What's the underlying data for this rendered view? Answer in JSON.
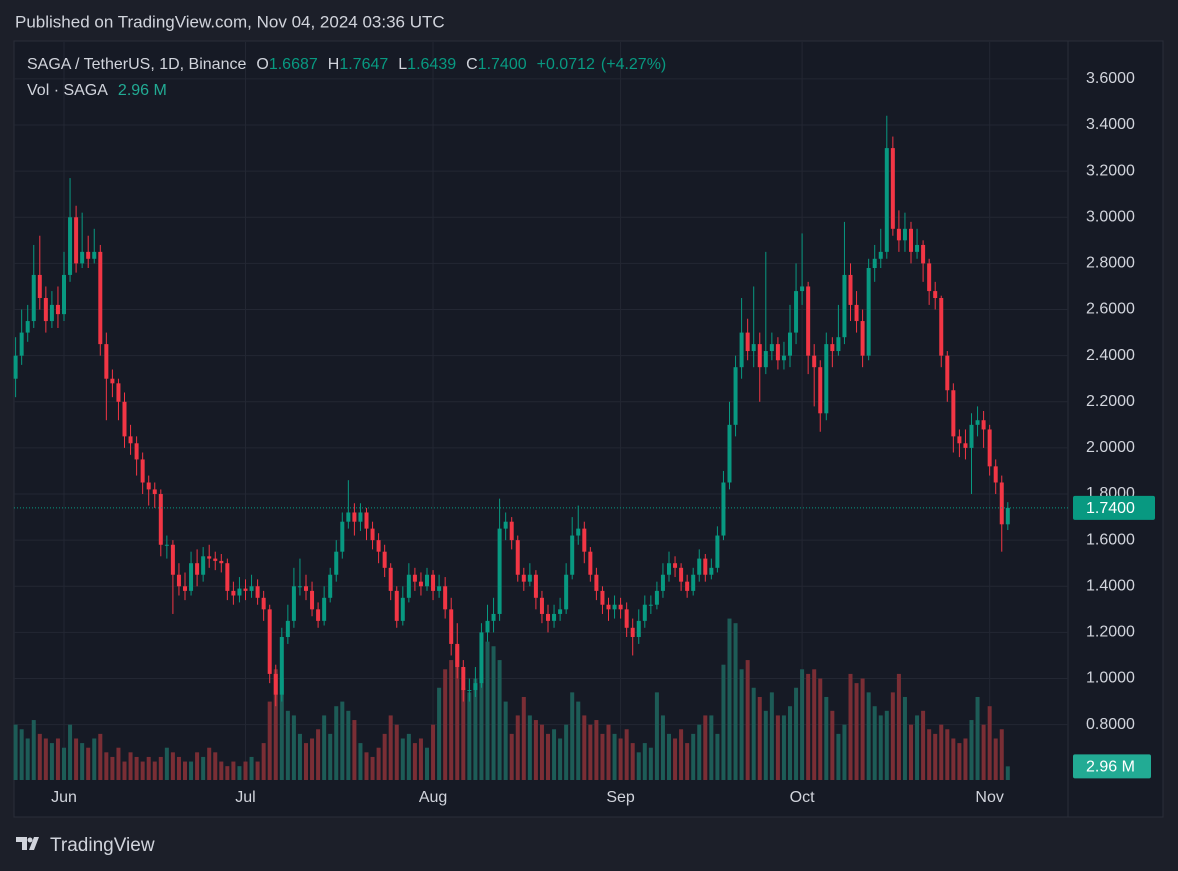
{
  "chart_data": {
    "type": "candlestick",
    "published": "Published on TradingView.com, Nov 04, 2024 03:36 UTC",
    "symbol": "SAGA / TetherUS, 1D, Binance",
    "ohlc": [
      {
        "key": "O",
        "value": "1.6687"
      },
      {
        "key": "H",
        "value": "1.7647"
      },
      {
        "key": "L",
        "value": "1.6439"
      },
      {
        "key": "C",
        "value": "1.7400"
      }
    ],
    "change": "+0.0712",
    "change_percent": "(+4.27%)",
    "volume_title": "Vol · SAGA",
    "volume_label": "2.96 M",
    "footer": "TradingView",
    "categories": [
      null,
      null,
      null,
      null,
      null,
      null,
      null,
      null,
      "Jun",
      null,
      null,
      null,
      null,
      null,
      null,
      null,
      null,
      null,
      null,
      null,
      null,
      null,
      null,
      null,
      null,
      null,
      null,
      null,
      null,
      null,
      null,
      null,
      null,
      null,
      null,
      null,
      null,
      null,
      "Jul",
      null,
      null,
      null,
      null,
      null,
      null,
      null,
      null,
      null,
      null,
      null,
      null,
      null,
      null,
      null,
      null,
      null,
      null,
      null,
      null,
      null,
      null,
      null,
      null,
      null,
      null,
      null,
      null,
      null,
      null,
      "Aug",
      null,
      null,
      null,
      null,
      null,
      null,
      null,
      null,
      null,
      null,
      null,
      null,
      null,
      null,
      null,
      null,
      null,
      null,
      null,
      null,
      null,
      null,
      null,
      null,
      null,
      null,
      null,
      null,
      null,
      null,
      "Sep",
      null,
      null,
      null,
      null,
      null,
      null,
      null,
      null,
      null,
      null,
      null,
      null,
      null,
      null,
      null,
      null,
      null,
      null,
      null,
      null,
      null,
      null,
      null,
      null,
      null,
      null,
      null,
      null,
      null,
      "Oct",
      null,
      null,
      null,
      null,
      null,
      null,
      null,
      null,
      null,
      null,
      null,
      null,
      null,
      null,
      null,
      null,
      null,
      null,
      null,
      null,
      null,
      null,
      null,
      null,
      null,
      null,
      null,
      null,
      null,
      null,
      "Nov",
      null,
      null,
      null
    ],
    "open": [
      2.3,
      2.4,
      2.5,
      2.55,
      2.75,
      2.65,
      2.55,
      2.62,
      2.58,
      2.75,
      3.0,
      2.8,
      2.85,
      2.82,
      2.85,
      2.45,
      2.3,
      2.28,
      2.2,
      2.05,
      2.02,
      1.95,
      1.85,
      1.82,
      1.8,
      1.58,
      1.58,
      1.45,
      1.4,
      1.38,
      1.5,
      1.45,
      1.53,
      1.52,
      1.51,
      1.5,
      1.38,
      1.36,
      1.39,
      1.38,
      1.4,
      1.35,
      1.3,
      1.02,
      0.93,
      1.18,
      1.25,
      1.4,
      1.4,
      1.38,
      1.3,
      1.25,
      1.35,
      1.45,
      1.55,
      1.68,
      1.72,
      1.68,
      1.72,
      1.65,
      1.6,
      1.55,
      1.48,
      1.38,
      1.25,
      1.35,
      1.45,
      1.42,
      1.4,
      1.45,
      1.38,
      1.4,
      1.3,
      1.15,
      1.05,
      0.95,
      0.95,
      0.98,
      1.2,
      1.25,
      1.28,
      1.65,
      1.68,
      1.6,
      1.45,
      1.42,
      1.45,
      1.35,
      1.28,
      1.25,
      1.28,
      1.3,
      1.45,
      1.62,
      1.65,
      1.55,
      1.45,
      1.38,
      1.32,
      1.3,
      1.32,
      1.3,
      1.22,
      1.18,
      1.25,
      1.32,
      1.32,
      1.38,
      1.45,
      1.5,
      1.48,
      1.42,
      1.38,
      1.45,
      1.52,
      1.45,
      1.48,
      1.62,
      1.85,
      2.1,
      2.35,
      2.5,
      2.42,
      2.45,
      2.35,
      2.42,
      2.45,
      2.38,
      2.4,
      2.5,
      2.68,
      2.7,
      2.4,
      2.35,
      2.15,
      2.45,
      2.42,
      2.48,
      2.75,
      2.62,
      2.55,
      2.4,
      2.78,
      2.82,
      2.85,
      3.3,
      2.95,
      2.9,
      2.95,
      2.85,
      2.88,
      2.8,
      2.68,
      2.65,
      2.4,
      2.25,
      2.05,
      2.02,
      2.0,
      2.1,
      2.12,
      2.08,
      1.92,
      1.85,
      1.6687
    ],
    "high": [
      2.48,
      2.6,
      2.62,
      2.88,
      2.92,
      2.7,
      2.68,
      2.7,
      2.85,
      3.17,
      3.05,
      3.02,
      2.92,
      2.95,
      2.88,
      2.5,
      2.34,
      2.3,
      2.24,
      2.1,
      2.05,
      1.98,
      1.88,
      1.85,
      1.82,
      1.62,
      1.6,
      1.5,
      1.46,
      1.55,
      1.56,
      1.57,
      1.58,
      1.55,
      1.54,
      1.52,
      1.42,
      1.44,
      1.43,
      1.45,
      1.43,
      1.38,
      1.32,
      1.06,
      1.22,
      1.32,
      1.48,
      1.52,
      1.45,
      1.42,
      1.33,
      1.4,
      1.48,
      1.6,
      1.72,
      1.86,
      1.76,
      1.76,
      1.74,
      1.68,
      1.63,
      1.58,
      1.5,
      1.4,
      1.4,
      1.5,
      1.48,
      1.46,
      1.48,
      1.47,
      1.45,
      1.44,
      1.35,
      1.24,
      1.08,
      1.0,
      1.05,
      1.24,
      1.32,
      1.35,
      1.78,
      1.72,
      1.7,
      1.62,
      1.48,
      1.5,
      1.47,
      1.38,
      1.32,
      1.32,
      1.35,
      1.5,
      1.7,
      1.75,
      1.68,
      1.57,
      1.48,
      1.4,
      1.35,
      1.36,
      1.35,
      1.33,
      1.26,
      1.3,
      1.36,
      1.36,
      1.42,
      1.5,
      1.55,
      1.53,
      1.5,
      1.45,
      1.48,
      1.56,
      1.54,
      1.52,
      1.66,
      1.9,
      2.2,
      2.4,
      2.65,
      2.56,
      2.7,
      2.5,
      2.85,
      2.5,
      2.48,
      2.46,
      2.62,
      2.8,
      2.93,
      2.72,
      2.45,
      2.38,
      2.5,
      2.48,
      2.62,
      2.98,
      2.8,
      2.68,
      2.6,
      2.82,
      2.88,
      2.95,
      3.44,
      3.35,
      3.03,
      3.02,
      2.98,
      2.95,
      2.9,
      2.82,
      2.72,
      2.66,
      2.42,
      2.28,
      2.08,
      2.08,
      2.15,
      2.18,
      2.16,
      2.1,
      1.95,
      1.88,
      1.7647
    ],
    "low": [
      2.22,
      2.36,
      2.46,
      2.52,
      2.6,
      2.5,
      2.52,
      2.52,
      2.55,
      2.72,
      2.76,
      2.78,
      2.78,
      2.8,
      2.4,
      2.12,
      2.22,
      2.12,
      2.0,
      1.97,
      1.88,
      1.8,
      1.75,
      1.74,
      1.53,
      1.52,
      1.28,
      1.36,
      1.34,
      1.36,
      1.4,
      1.42,
      1.48,
      1.47,
      1.46,
      1.34,
      1.32,
      1.33,
      1.34,
      1.35,
      1.32,
      1.25,
      0.98,
      0.88,
      0.9,
      1.15,
      1.22,
      1.36,
      1.34,
      1.27,
      1.22,
      1.23,
      1.33,
      1.42,
      1.52,
      1.65,
      1.62,
      1.64,
      1.6,
      1.56,
      1.5,
      1.44,
      1.34,
      1.22,
      1.23,
      1.33,
      1.38,
      1.36,
      1.38,
      1.34,
      1.35,
      1.26,
      1.1,
      1.0,
      0.9,
      0.9,
      0.92,
      0.96,
      1.16,
      1.2,
      1.25,
      1.6,
      1.56,
      1.42,
      1.38,
      1.4,
      1.3,
      1.24,
      1.2,
      1.22,
      1.25,
      1.28,
      1.43,
      1.58,
      1.5,
      1.42,
      1.34,
      1.28,
      1.25,
      1.26,
      1.26,
      1.18,
      1.1,
      1.15,
      1.22,
      1.28,
      1.3,
      1.35,
      1.42,
      1.44,
      1.38,
      1.35,
      1.36,
      1.42,
      1.42,
      1.43,
      1.46,
      1.6,
      1.82,
      2.05,
      2.3,
      2.38,
      2.35,
      2.2,
      2.32,
      2.38,
      2.34,
      2.34,
      2.35,
      2.45,
      2.62,
      2.32,
      2.18,
      2.07,
      2.12,
      2.35,
      2.4,
      2.45,
      2.55,
      2.5,
      2.35,
      2.38,
      2.72,
      2.78,
      2.82,
      2.92,
      2.85,
      2.85,
      2.8,
      2.82,
      2.72,
      2.62,
      2.6,
      2.35,
      2.2,
      1.98,
      1.96,
      1.95,
      1.8,
      2.05,
      2.0,
      1.88,
      1.8,
      1.55,
      1.6439
    ],
    "close": [
      2.4,
      2.5,
      2.55,
      2.75,
      2.65,
      2.55,
      2.62,
      2.58,
      2.75,
      3.0,
      2.8,
      2.85,
      2.82,
      2.85,
      2.45,
      2.3,
      2.28,
      2.2,
      2.05,
      2.02,
      1.95,
      1.85,
      1.82,
      1.8,
      1.58,
      1.58,
      1.45,
      1.4,
      1.38,
      1.5,
      1.45,
      1.53,
      1.52,
      1.51,
      1.5,
      1.38,
      1.36,
      1.39,
      1.38,
      1.4,
      1.35,
      1.3,
      1.02,
      0.93,
      1.18,
      1.25,
      1.4,
      1.4,
      1.38,
      1.3,
      1.25,
      1.35,
      1.45,
      1.55,
      1.68,
      1.72,
      1.68,
      1.72,
      1.65,
      1.6,
      1.55,
      1.48,
      1.38,
      1.25,
      1.35,
      1.45,
      1.42,
      1.4,
      1.45,
      1.38,
      1.4,
      1.3,
      1.15,
      1.05,
      0.95,
      0.95,
      0.98,
      1.2,
      1.25,
      1.28,
      1.65,
      1.68,
      1.6,
      1.45,
      1.42,
      1.45,
      1.35,
      1.28,
      1.25,
      1.28,
      1.3,
      1.45,
      1.62,
      1.65,
      1.55,
      1.45,
      1.38,
      1.32,
      1.3,
      1.32,
      1.3,
      1.22,
      1.18,
      1.25,
      1.32,
      1.32,
      1.38,
      1.45,
      1.5,
      1.48,
      1.42,
      1.38,
      1.45,
      1.52,
      1.45,
      1.48,
      1.62,
      1.85,
      2.1,
      2.35,
      2.5,
      2.42,
      2.45,
      2.35,
      2.42,
      2.45,
      2.38,
      2.4,
      2.5,
      2.68,
      2.7,
      2.4,
      2.35,
      2.15,
      2.45,
      2.42,
      2.48,
      2.75,
      2.62,
      2.55,
      2.4,
      2.78,
      2.82,
      2.85,
      3.3,
      2.95,
      2.9,
      2.95,
      2.85,
      2.88,
      2.8,
      2.68,
      2.65,
      2.4,
      2.25,
      2.05,
      2.02,
      2.0,
      2.1,
      2.12,
      2.08,
      1.92,
      1.85,
      1.6687,
      1.74
    ],
    "volume": [
      12,
      11,
      9,
      13,
      10,
      9,
      8,
      9,
      7,
      12,
      9,
      8,
      7,
      9,
      10,
      6,
      5,
      7,
      4,
      6,
      5,
      4,
      5,
      4,
      5,
      7,
      6,
      5,
      4,
      4,
      6,
      5,
      7,
      6,
      4,
      3,
      4,
      3,
      4,
      5,
      4,
      8,
      17,
      24,
      22,
      15,
      14,
      10,
      8,
      9,
      11,
      14,
      10,
      16,
      17,
      15,
      13,
      8,
      6,
      5,
      7,
      10,
      14,
      12,
      9,
      10,
      8,
      9,
      7,
      12,
      20,
      24,
      26,
      29,
      20,
      19,
      22,
      23,
      30,
      29,
      26,
      17,
      10,
      14,
      18,
      14,
      13,
      12,
      10,
      11,
      9,
      12,
      19,
      17,
      14,
      12,
      13,
      10,
      12,
      10,
      9,
      11,
      8,
      6,
      8,
      7,
      19,
      14,
      10,
      9,
      11,
      8,
      10,
      12,
      14,
      14,
      10,
      25,
      35,
      34,
      24,
      26,
      20,
      18,
      15,
      19,
      14,
      14,
      16,
      20,
      24,
      23,
      24,
      22,
      18,
      15,
      10,
      12,
      23,
      21,
      22,
      19,
      16,
      14,
      15,
      19,
      23,
      18,
      12,
      14,
      15,
      11,
      10,
      12,
      11,
      9,
      8,
      9,
      13,
      18,
      12,
      16,
      9,
      11,
      2.96
    ],
    "ylim": [
      0.56,
      3.76
    ],
    "yticks": [
      {
        "value": 0.8,
        "label": "0.8000"
      },
      {
        "value": 1.0,
        "label": "1.0000"
      },
      {
        "value": 1.2,
        "label": "1.2000"
      },
      {
        "value": 1.4,
        "label": "1.4000"
      },
      {
        "value": 1.6,
        "label": "1.6000"
      },
      {
        "value": 1.8,
        "label": "1.8000"
      },
      {
        "value": 2.0,
        "label": "2.0000"
      },
      {
        "value": 2.2,
        "label": "2.2000"
      },
      {
        "value": 2.4,
        "label": "2.4000"
      },
      {
        "value": 2.6,
        "label": "2.6000"
      },
      {
        "value": 2.8,
        "label": "2.8000"
      },
      {
        "value": 3.0,
        "label": "3.0000"
      },
      {
        "value": 3.2,
        "label": "3.2000"
      },
      {
        "value": 3.4,
        "label": "3.4000"
      },
      {
        "value": 3.6,
        "label": "3.6000"
      }
    ],
    "volume_lim": [
      0,
      160
    ],
    "grid": true,
    "up_color": "#089981",
    "down_color": "#f23645",
    "volume_up_color": "#1d5c57",
    "volume_down_color": "#7a2e35"
  }
}
